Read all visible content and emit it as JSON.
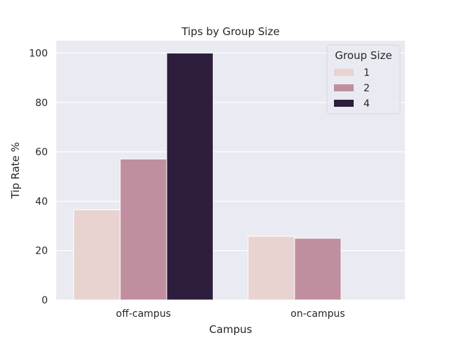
{
  "chart_data": {
    "type": "bar",
    "title": "Tips by Group Size",
    "xlabel": "Campus",
    "ylabel": "Tip Rate %",
    "categories": [
      "off-campus",
      "on-campus"
    ],
    "series": [
      {
        "name": "1",
        "values": [
          36.5,
          25.8
        ],
        "color": "#e8d3d0"
      },
      {
        "name": "2",
        "values": [
          57.1,
          25.0
        ],
        "color": "#c08f9f"
      },
      {
        "name": "4",
        "values": [
          100,
          null
        ],
        "color": "#2d1e3e"
      }
    ],
    "ylim": [
      0,
      105
    ],
    "yticks": [
      0,
      20,
      40,
      60,
      80,
      100
    ],
    "grid": true,
    "legend": {
      "title": "Group Size",
      "placement": "top-right"
    },
    "background_color": "#eaeaf2",
    "grid_color": "#ffffff"
  }
}
